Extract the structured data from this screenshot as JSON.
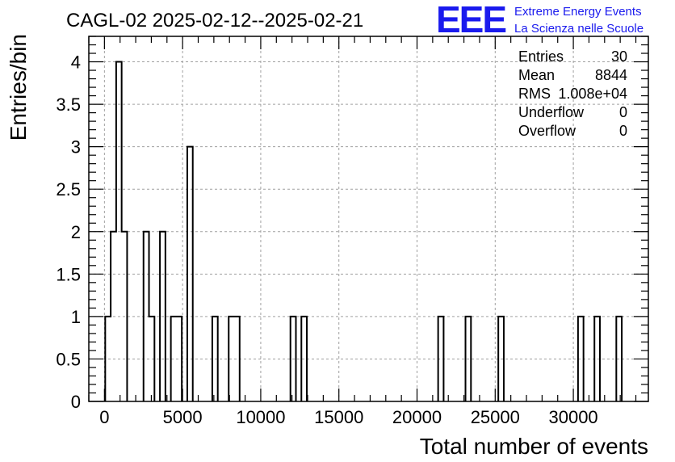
{
  "title": "CAGL-02 2025-02-12--2025-02-21",
  "logo": {
    "mark": "EEE",
    "line1": "Extreme Energy Events",
    "line2": "La Scienza nelle Scuole",
    "color": "#1a1aee"
  },
  "stats": {
    "rows": [
      {
        "label": "Entries",
        "value": "30"
      },
      {
        "label": "Mean",
        "value": "8844"
      },
      {
        "label": "RMS",
        "value": "1.008e+04"
      },
      {
        "label": "Underflow",
        "value": "0"
      },
      {
        "label": "Overflow",
        "value": "0"
      }
    ]
  },
  "chart_data": {
    "type": "histogram",
    "title": "CAGL-02 2025-02-12--2025-02-21",
    "xlabel": "Total number of events",
    "ylabel": "Entries/bin",
    "xlim": [
      -1000,
      34800
    ],
    "ylim": [
      0,
      4.3
    ],
    "grid": true,
    "legend_position": "top-right",
    "bin_width": 350,
    "x_ticks": [
      0,
      5000,
      10000,
      15000,
      20000,
      25000,
      30000
    ],
    "x_tick_labels": [
      "0",
      "5000",
      "10000",
      "15000",
      "20000",
      "25000",
      "30000"
    ],
    "y_ticks": [
      0,
      0.5,
      1,
      1.5,
      2,
      2.5,
      3,
      3.5,
      4
    ],
    "y_tick_labels": [
      "0",
      "0.5",
      "1",
      "1.5",
      "2",
      "2.5",
      "3",
      "3.5",
      "4"
    ],
    "bins": [
      {
        "x": 50,
        "count": 1
      },
      {
        "x": 400,
        "count": 2
      },
      {
        "x": 750,
        "count": 4
      },
      {
        "x": 1100,
        "count": 2
      },
      {
        "x": 2500,
        "count": 2
      },
      {
        "x": 2850,
        "count": 1
      },
      {
        "x": 3550,
        "count": 2
      },
      {
        "x": 4250,
        "count": 1
      },
      {
        "x": 4600,
        "count": 1
      },
      {
        "x": 5300,
        "count": 3
      },
      {
        "x": 6900,
        "count": 1
      },
      {
        "x": 7950,
        "count": 1
      },
      {
        "x": 8300,
        "count": 1
      },
      {
        "x": 11900,
        "count": 1
      },
      {
        "x": 12600,
        "count": 1
      },
      {
        "x": 21350,
        "count": 1
      },
      {
        "x": 23100,
        "count": 1
      },
      {
        "x": 25200,
        "count": 1
      },
      {
        "x": 30300,
        "count": 1
      },
      {
        "x": 31350,
        "count": 1
      },
      {
        "x": 32750,
        "count": 1
      }
    ],
    "colors": {
      "line": "#000000",
      "grid": "#a0a0a0",
      "background": "#ffffff"
    }
  }
}
